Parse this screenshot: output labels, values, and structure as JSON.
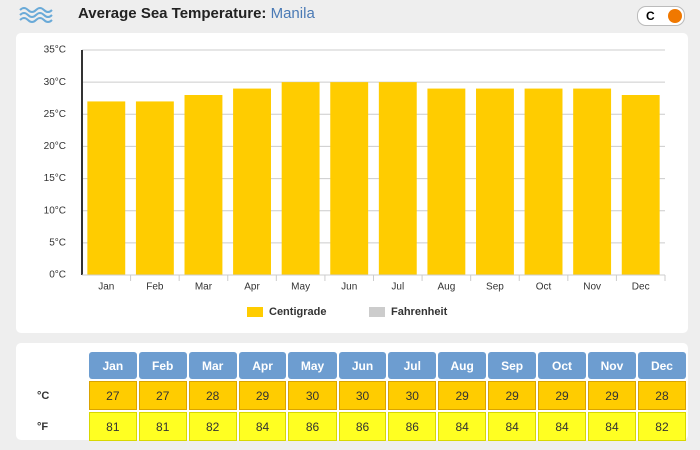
{
  "header": {
    "title": "Average Sea Temperature:",
    "location": "Manila",
    "unit_toggle": "C"
  },
  "chart_data": {
    "type": "bar",
    "categories": [
      "Jan",
      "Feb",
      "Mar",
      "Apr",
      "May",
      "Jun",
      "Jul",
      "Aug",
      "Sep",
      "Oct",
      "Nov",
      "Dec"
    ],
    "series": [
      {
        "name": "Centigrade",
        "color": "#ffcc00",
        "values": [
          27,
          27,
          28,
          29,
          30,
          30,
          30,
          29,
          29,
          29,
          29,
          28
        ]
      }
    ],
    "inactive_legend": [
      {
        "name": "Fahrenheit",
        "color": "#cccccc"
      }
    ],
    "ylim": [
      0,
      35
    ],
    "yticks": [
      {
        "value": 0,
        "label": "0°C"
      },
      {
        "value": 5,
        "label": "5°C"
      },
      {
        "value": 10,
        "label": "10°C"
      },
      {
        "value": 15,
        "label": "15°C"
      },
      {
        "value": 20,
        "label": "20°C"
      },
      {
        "value": 25,
        "label": "25°C"
      },
      {
        "value": 30,
        "label": "30°C"
      },
      {
        "value": 35,
        "label": "35°C"
      }
    ],
    "grid": true
  },
  "table": {
    "header": [
      "Jan",
      "Feb",
      "Mar",
      "Apr",
      "May",
      "Jun",
      "Jul",
      "Aug",
      "Sep",
      "Oct",
      "Nov",
      "Dec"
    ],
    "rows": [
      [
        "°C",
        "27",
        "27",
        "28",
        "29",
        "30",
        "30",
        "30",
        "29",
        "29",
        "29",
        "29",
        "28"
      ],
      [
        "°F",
        "81",
        "81",
        "82",
        "84",
        "86",
        "86",
        "86",
        "84",
        "84",
        "84",
        "84",
        "82"
      ]
    ]
  }
}
